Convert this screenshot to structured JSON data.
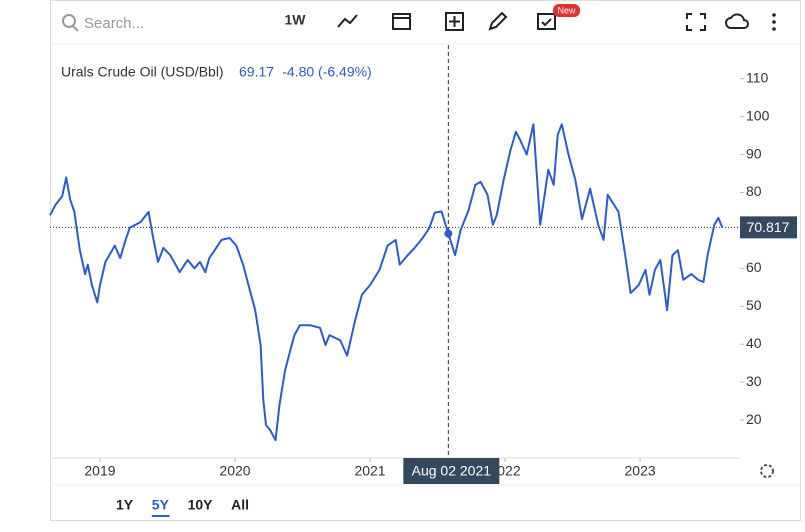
{
  "toolbar": {
    "search_placeholder": "Search...",
    "interval": "1W",
    "badge": "New"
  },
  "chart_data": {
    "type": "line",
    "title": "Urals Crude Oil (USD/Bbl)",
    "change": "-4.80 (-6.49%)",
    "color": "#2a5bd7",
    "x": [
      2018.63,
      2018.67,
      2018.72,
      2018.75,
      2018.78,
      2018.81,
      2018.85,
      2018.89,
      2018.91,
      2018.94,
      2018.98,
      2019.0,
      2019.04,
      2019.07,
      2019.11,
      2019.15,
      2019.19,
      2019.22,
      2019.3,
      2019.36,
      2019.39,
      2019.43,
      2019.47,
      2019.52,
      2019.56,
      2019.59,
      2019.65,
      2019.7,
      2019.74,
      2019.78,
      2019.81,
      2019.85,
      2019.9,
      2019.96,
      2020.01,
      2020.06,
      2020.1,
      2020.15,
      2020.19,
      2020.21,
      2020.23,
      2020.26,
      2020.3,
      2020.33,
      2020.37,
      2020.41,
      2020.44,
      2020.48,
      2020.56,
      2020.63,
      2020.67,
      2020.7,
      2020.78,
      2020.83,
      2020.89,
      2020.94,
      2021.0,
      2021.07,
      2021.13,
      2021.19,
      2021.22,
      2021.28,
      2021.33,
      2021.39,
      2021.44,
      2021.48,
      2021.53,
      2021.58,
      2021.63,
      2021.67,
      2021.73,
      2021.78,
      2021.82,
      2021.87,
      2021.91,
      2021.94,
      2021.99,
      2022.04,
      2022.08,
      2022.11,
      2022.16,
      2022.21,
      2022.26,
      2022.32,
      2022.36,
      2022.39,
      2022.42,
      2022.47,
      2022.52,
      2022.57,
      2022.63,
      2022.69,
      2022.73,
      2022.76,
      2022.84,
      2022.89,
      2022.93,
      2022.99,
      2023.04,
      2023.07,
      2023.11,
      2023.15,
      2023.2,
      2023.24,
      2023.28,
      2023.32,
      2023.38,
      2023.43,
      2023.47,
      2023.5,
      2023.55,
      2023.58,
      2023.61
    ],
    "values": [
      74,
      76.7,
      79,
      84,
      78,
      75,
      65,
      58.5,
      61,
      55.6,
      51,
      55.6,
      61.7,
      63.5,
      66,
      62.7,
      67.5,
      70.7,
      72.2,
      74.9,
      68.8,
      61.7,
      65.4,
      63.5,
      61,
      59,
      62.2,
      60,
      61.7,
      59,
      62.7,
      64.8,
      67.5,
      68,
      66,
      61,
      55.6,
      49,
      39.8,
      25.3,
      18.7,
      17.4,
      14.7,
      24,
      33,
      38.5,
      42.4,
      45,
      45,
      44.3,
      39.8,
      42.4,
      41,
      37,
      46.4,
      53,
      55.6,
      59.6,
      66,
      67.5,
      61,
      63.5,
      65.4,
      68,
      70.7,
      74.7,
      75,
      69.17,
      63.5,
      70,
      75.4,
      82,
      82.8,
      79.4,
      71.5,
      74.2,
      83.4,
      91.2,
      96,
      94,
      90,
      98,
      71.5,
      86,
      82,
      95.2,
      98,
      90,
      83.4,
      73,
      81,
      71.5,
      67.5,
      79.4,
      74.9,
      63.5,
      53.5,
      55.6,
      59.6,
      53,
      59.6,
      62.2,
      49,
      63.5,
      64.8,
      57,
      58.5,
      57,
      56.4,
      63.5,
      71.5,
      73.3,
      70.7
    ],
    "xlim": [
      2018.63,
      2023.74
    ],
    "xticks": [
      2019,
      2020,
      2021,
      2022,
      2023
    ],
    "ylim": [
      10,
      118.9
    ],
    "yticks": [
      20,
      30,
      40,
      50,
      60,
      70,
      80,
      90,
      100,
      110
    ],
    "last_price": 70.817,
    "crosshair": {
      "label": "Aug 02 2021",
      "x": 2021.58,
      "value": 69.17
    }
  },
  "ranges": [
    "1Y",
    "5Y",
    "10Y",
    "All"
  ],
  "selected_range": "5Y"
}
